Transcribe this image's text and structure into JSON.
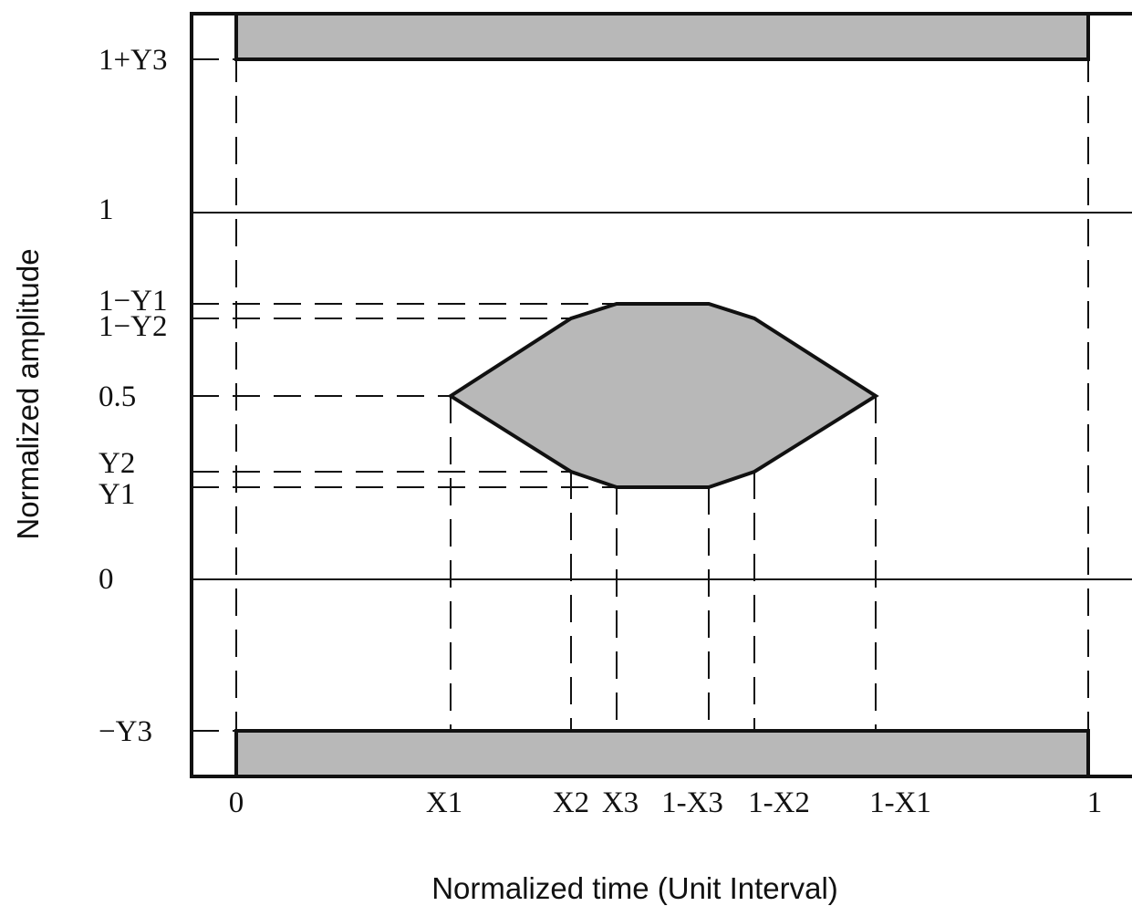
{
  "axes": {
    "x_title": "Normalized time (Unit Interval)",
    "y_title": "Normalized amplitude"
  },
  "y_labels": {
    "top": "1+Y3",
    "one": "1",
    "one_minus_y1": "1−Y1",
    "one_minus_y2": "1−Y2",
    "half": "0.5",
    "y2": "Y2",
    "y1": "Y1",
    "zero": "0",
    "bottom": "−Y3"
  },
  "x_labels": {
    "zero": "0",
    "x1": "X1",
    "x2": "X2",
    "x3": "X3",
    "one_minus_x3": "1-X3",
    "one_minus_x2": "1-X2",
    "one_minus_x1": "1-X1",
    "one": "1"
  },
  "colors": {
    "mask_fill": "#b8b8b8",
    "line": "#111111",
    "background": "#ffffff"
  }
}
